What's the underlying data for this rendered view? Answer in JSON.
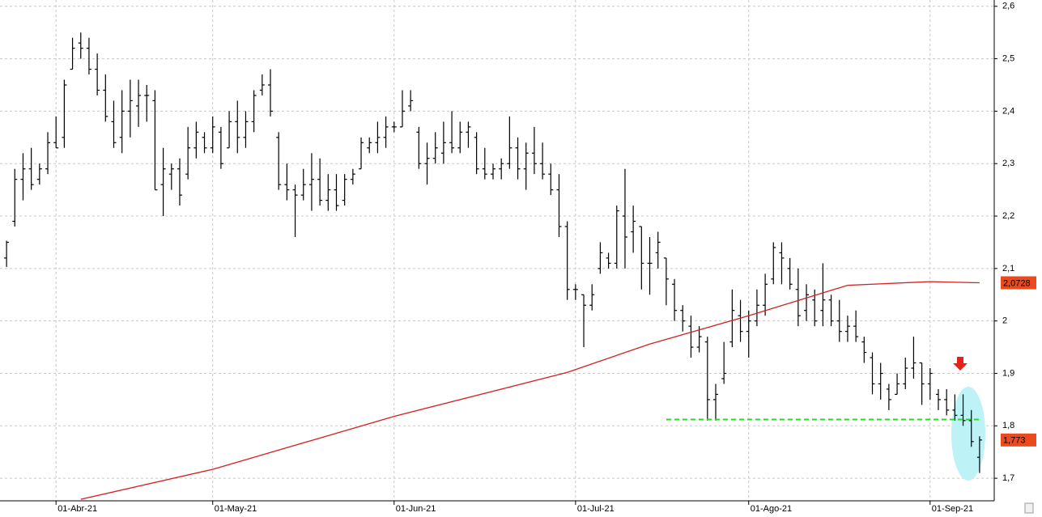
{
  "chart_data": {
    "type": "ohlc",
    "categories": [
      null,
      null,
      null,
      null,
      null,
      null,
      "01-Abr-21",
      null,
      null,
      null,
      null,
      null,
      null,
      null,
      null,
      null,
      null,
      null,
      null,
      null,
      null,
      null,
      null,
      null,
      null,
      "01-May-21",
      null,
      null,
      null,
      null,
      null,
      null,
      null,
      null,
      null,
      null,
      null,
      null,
      null,
      null,
      null,
      null,
      null,
      null,
      null,
      null,
      null,
      "01-Jun-21",
      null,
      null,
      null,
      null,
      null,
      null,
      null,
      null,
      null,
      null,
      null,
      null,
      null,
      null,
      null,
      null,
      null,
      null,
      null,
      null,
      null,
      "01-Jul-21",
      null,
      null,
      null,
      null,
      null,
      null,
      null,
      null,
      null,
      null,
      null,
      null,
      null,
      null,
      null,
      null,
      null,
      null,
      null,
      null,
      "01-Ago-21",
      null,
      null,
      null,
      null,
      null,
      null,
      null,
      null,
      null,
      null,
      null,
      null,
      null,
      null,
      null,
      null,
      null,
      null,
      null,
      null,
      null,
      "01-Sep-21",
      null,
      null,
      null,
      null,
      null,
      null
    ],
    "series": [
      {
        "color": "#000000",
        "values": [
          [
            2.12,
            2.153,
            2.103,
            2.15
          ],
          [
            2.19,
            2.29,
            2.18,
            2.27
          ],
          [
            2.27,
            2.32,
            2.23,
            2.29
          ],
          [
            2.29,
            2.33,
            2.25,
            2.26
          ],
          [
            2.27,
            2.3,
            2.26,
            2.29
          ],
          [
            2.29,
            2.36,
            2.28,
            2.34
          ],
          [
            2.34,
            2.39,
            2.33,
            2.33
          ],
          [
            2.35,
            2.46,
            2.33,
            2.45
          ],
          [
            2.48,
            2.54,
            2.48,
            2.52
          ],
          [
            2.53,
            2.55,
            2.5,
            2.52
          ],
          [
            2.52,
            2.54,
            2.47,
            2.48
          ],
          [
            2.48,
            2.51,
            2.43,
            2.44
          ],
          [
            2.44,
            2.47,
            2.38,
            2.39
          ],
          [
            2.38,
            2.42,
            2.33,
            2.34
          ],
          [
            2.35,
            2.44,
            2.32,
            2.4
          ],
          [
            2.4,
            2.46,
            2.35,
            2.42
          ],
          [
            2.41,
            2.46,
            2.37,
            2.43
          ],
          [
            2.43,
            2.45,
            2.38,
            2.43
          ],
          [
            2.42,
            2.44,
            2.25,
            2.25
          ],
          [
            2.26,
            2.33,
            2.2,
            2.29
          ],
          [
            2.28,
            2.3,
            2.25,
            2.29
          ],
          [
            2.29,
            2.31,
            2.22,
            2.24
          ],
          [
            2.28,
            2.37,
            2.27,
            2.33
          ],
          [
            2.33,
            2.38,
            2.31,
            2.36
          ],
          [
            2.35,
            2.36,
            2.32,
            2.33
          ],
          [
            2.33,
            2.39,
            2.32,
            2.37
          ],
          [
            2.36,
            2.37,
            2.29,
            2.3
          ],
          [
            2.33,
            2.4,
            2.33,
            2.38
          ],
          [
            2.38,
            2.42,
            2.32,
            2.35
          ],
          [
            2.35,
            2.4,
            2.33,
            2.38
          ],
          [
            2.38,
            2.44,
            2.36,
            2.43
          ],
          [
            2.44,
            2.47,
            2.43,
            2.45
          ],
          [
            2.45,
            2.48,
            2.39,
            2.4
          ],
          [
            2.35,
            2.36,
            2.25,
            2.26
          ],
          [
            2.26,
            2.3,
            2.23,
            2.25
          ],
          [
            2.25,
            2.26,
            2.16,
            2.24
          ],
          [
            2.24,
            2.29,
            2.23,
            2.26
          ],
          [
            2.26,
            2.32,
            2.21,
            2.27
          ],
          [
            2.27,
            2.31,
            2.22,
            2.23
          ],
          [
            2.23,
            2.28,
            2.21,
            2.25
          ],
          [
            2.25,
            2.28,
            2.21,
            2.22
          ],
          [
            2.23,
            2.28,
            2.22,
            2.27
          ],
          [
            2.27,
            2.29,
            2.26,
            2.28
          ],
          [
            2.29,
            2.35,
            2.29,
            2.34
          ],
          [
            2.33,
            2.35,
            2.32,
            2.34
          ],
          [
            2.34,
            2.38,
            2.32,
            2.35
          ],
          [
            2.35,
            2.39,
            2.33,
            2.37
          ],
          [
            2.37,
            2.38,
            2.36,
            2.37
          ],
          [
            2.37,
            2.44,
            2.37,
            2.4
          ],
          [
            2.41,
            2.44,
            2.4,
            2.42
          ],
          [
            2.36,
            2.37,
            2.29,
            2.3
          ],
          [
            2.3,
            2.34,
            2.26,
            2.31
          ],
          [
            2.31,
            2.36,
            2.3,
            2.33
          ],
          [
            2.32,
            2.38,
            2.3,
            2.34
          ],
          [
            2.34,
            2.4,
            2.32,
            2.33
          ],
          [
            2.33,
            2.38,
            2.32,
            2.36
          ],
          [
            2.36,
            2.38,
            2.33,
            2.37
          ],
          [
            2.35,
            2.36,
            2.28,
            2.29
          ],
          [
            2.29,
            2.33,
            2.27,
            2.28
          ],
          [
            2.28,
            2.3,
            2.27,
            2.29
          ],
          [
            2.29,
            2.31,
            2.27,
            2.3
          ],
          [
            2.3,
            2.39,
            2.29,
            2.33
          ],
          [
            2.33,
            2.35,
            2.27,
            2.29
          ],
          [
            2.29,
            2.34,
            2.25,
            2.32
          ],
          [
            2.32,
            2.37,
            2.28,
            2.3
          ],
          [
            2.3,
            2.34,
            2.27,
            2.28
          ],
          [
            2.28,
            2.3,
            2.24,
            2.25
          ],
          [
            2.25,
            2.28,
            2.16,
            2.18
          ],
          [
            2.18,
            2.19,
            2.04,
            2.06
          ],
          [
            2.06,
            2.07,
            2.04,
            2.06
          ],
          [
            2.05,
            2.05,
            1.95,
            2.03
          ],
          [
            2.03,
            2.07,
            2.02,
            2.05
          ],
          [
            2.1,
            2.15,
            2.09,
            2.13
          ],
          [
            2.12,
            2.13,
            2.1,
            2.11
          ],
          [
            2.11,
            2.22,
            2.1,
            2.21
          ],
          [
            2.2,
            2.29,
            2.1,
            2.16
          ],
          [
            2.17,
            2.22,
            2.13,
            2.19
          ],
          [
            2.18,
            2.18,
            2.06,
            2.11
          ],
          [
            2.11,
            2.16,
            2.05,
            2.11
          ],
          [
            2.13,
            2.17,
            2.1,
            2.15
          ],
          [
            2.12,
            2.12,
            2.03,
            2.08
          ],
          [
            2.07,
            2.08,
            2.0,
            2.02
          ],
          [
            2.02,
            2.03,
            1.98,
            2.0
          ],
          [
            1.99,
            2.01,
            1.93,
            1.95
          ],
          [
            1.95,
            1.99,
            1.94,
            1.97
          ],
          [
            1.96,
            1.97,
            1.81,
            1.85
          ],
          [
            1.85,
            1.88,
            1.81,
            1.86
          ],
          [
            1.89,
            1.96,
            1.88,
            1.9
          ],
          [
            1.96,
            2.06,
            1.95,
            2.02
          ],
          [
            2.01,
            2.04,
            1.96,
            1.98
          ],
          [
            1.98,
            2.02,
            1.93,
            2.0
          ],
          [
            2.0,
            2.06,
            1.99,
            2.03
          ],
          [
            2.03,
            2.09,
            2.01,
            2.07
          ],
          [
            2.08,
            2.15,
            2.07,
            2.14
          ],
          [
            2.13,
            2.15,
            2.07,
            2.12
          ],
          [
            2.1,
            2.12,
            2.06,
            2.07
          ],
          [
            2.06,
            2.1,
            1.99,
            2.01
          ],
          [
            2.02,
            2.07,
            2.0,
            2.05
          ],
          [
            2.04,
            2.06,
            1.99,
            2.0
          ],
          [
            2.02,
            2.11,
            1.99,
            2.04
          ],
          [
            2.04,
            2.05,
            1.99,
            2.0
          ],
          [
            2.0,
            2.04,
            1.96,
            1.98
          ],
          [
            1.98,
            2.01,
            1.96,
            1.99
          ],
          [
            1.99,
            2.02,
            1.96,
            1.97
          ],
          [
            1.96,
            1.97,
            1.92,
            1.94
          ],
          [
            1.93,
            1.94,
            1.86,
            1.88
          ],
          [
            1.88,
            1.92,
            1.85,
            1.9
          ],
          [
            1.87,
            1.88,
            1.83,
            1.85
          ],
          [
            1.86,
            1.9,
            1.86,
            1.88
          ],
          [
            1.88,
            1.93,
            1.87,
            1.91
          ],
          [
            1.91,
            1.97,
            1.89,
            1.92
          ],
          [
            1.92,
            1.92,
            1.84,
            1.88
          ],
          [
            1.88,
            1.91,
            1.85,
            1.9
          ],
          [
            1.86,
            1.87,
            1.83,
            1.85
          ],
          [
            1.85,
            1.87,
            1.82,
            1.83
          ],
          [
            1.83,
            1.86,
            1.81,
            1.82
          ],
          [
            1.82,
            1.86,
            1.8,
            1.81
          ],
          [
            1.81,
            1.83,
            1.76,
            1.77
          ],
          [
            1.74,
            1.78,
            1.71,
            1.773
          ]
        ]
      }
    ],
    "overlays": [
      {
        "type": "line",
        "color": "#d42020",
        "x": [
          9,
          25,
          47,
          68,
          78,
          90,
          102,
          112,
          118
        ],
        "values": [
          1.66,
          1.717,
          1.818,
          1.902,
          1.956,
          2.01,
          2.068,
          2.075,
          2.0728
        ]
      },
      {
        "type": "dashed",
        "color": "#22dd22",
        "x": [
          80,
          118
        ],
        "values": [
          1.812,
          1.812
        ]
      }
    ],
    "price_flags": [
      {
        "value": 2.0728,
        "label": "2,0728",
        "color": "#ea4a1c"
      },
      {
        "value": 1.773,
        "label": "1,773",
        "color": "#ea4a1c"
      }
    ],
    "ylim": [
      1.657,
      2.612
    ],
    "yticks": [
      {
        "value": 1.7,
        "label": "1,7"
      },
      {
        "value": 1.8,
        "label": "1,8"
      },
      {
        "value": 1.9,
        "label": "1,9"
      },
      2,
      {
        "value": 2.1,
        "label": "2,1"
      },
      {
        "value": 2.2,
        "label": "2,2"
      },
      {
        "value": 2.3,
        "label": "2,3"
      },
      {
        "value": 2.4,
        "label": "2,4"
      },
      {
        "value": 2.5,
        "label": "2,5"
      },
      {
        "value": 2.6,
        "label": "2,6"
      }
    ],
    "grid": true
  }
}
